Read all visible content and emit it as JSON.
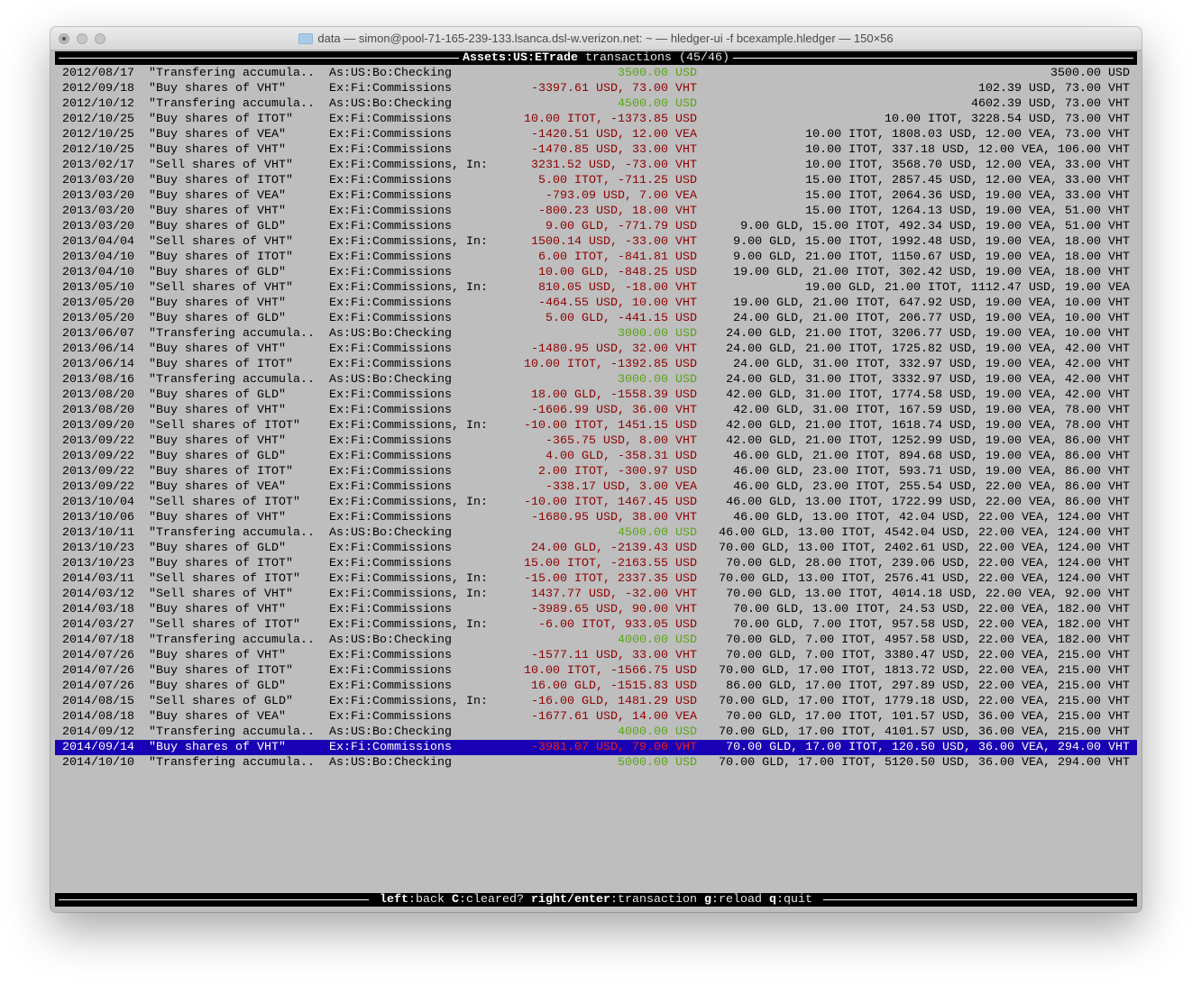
{
  "window": {
    "title": "data — simon@pool-71-165-239-133.lsanca.dsl-w.verizon.net: ~ — hledger-ui -f bcexample.hledger — 150×56"
  },
  "header": {
    "account": "Assets:US:ETrade",
    "label": "transactions",
    "count": "(45/46)"
  },
  "footer": [
    {
      "key": "left",
      "action": "back"
    },
    {
      "key": "C",
      "action": "cleared?"
    },
    {
      "key": "right/enter",
      "action": "transaction"
    },
    {
      "key": "g",
      "action": "reload"
    },
    {
      "key": "q",
      "action": "quit"
    }
  ],
  "colors": {
    "negative": "#8e0000",
    "positive": "#5aa516",
    "selection": "#1a00b4",
    "background": "#bebebe"
  },
  "selected_index": 44,
  "rows": [
    [
      "2012/08/17",
      "\"Transfering accumula..",
      "As:US:Bo:Checking",
      "3500.00 USD",
      "3500.00 USD"
    ],
    [
      "2012/09/18",
      "\"Buy shares of VHT\"",
      "Ex:Fi:Commissions",
      "-3397.61 USD, 73.00 VHT",
      "102.39 USD, 73.00 VHT"
    ],
    [
      "2012/10/12",
      "\"Transfering accumula..",
      "As:US:Bo:Checking",
      "4500.00 USD",
      "4602.39 USD, 73.00 VHT"
    ],
    [
      "2012/10/25",
      "\"Buy shares of ITOT\"",
      "Ex:Fi:Commissions",
      "10.00 ITOT, -1373.85 USD",
      "10.00 ITOT, 3228.54 USD, 73.00 VHT"
    ],
    [
      "2012/10/25",
      "\"Buy shares of VEA\"",
      "Ex:Fi:Commissions",
      "-1420.51 USD, 12.00 VEA",
      "10.00 ITOT, 1808.03 USD, 12.00 VEA, 73.00 VHT"
    ],
    [
      "2012/10/25",
      "\"Buy shares of VHT\"",
      "Ex:Fi:Commissions",
      "-1470.85 USD, 33.00 VHT",
      "10.00 ITOT, 337.18 USD, 12.00 VEA, 106.00 VHT"
    ],
    [
      "2013/02/17",
      "\"Sell shares of VHT\"",
      "Ex:Fi:Commissions, In:..",
      "3231.52 USD, -73.00 VHT",
      "10.00 ITOT, 3568.70 USD, 12.00 VEA, 33.00 VHT"
    ],
    [
      "2013/03/20",
      "\"Buy shares of ITOT\"",
      "Ex:Fi:Commissions",
      "5.00 ITOT, -711.25 USD",
      "15.00 ITOT, 2857.45 USD, 12.00 VEA, 33.00 VHT"
    ],
    [
      "2013/03/20",
      "\"Buy shares of VEA\"",
      "Ex:Fi:Commissions",
      "-793.09 USD, 7.00 VEA",
      "15.00 ITOT, 2064.36 USD, 19.00 VEA, 33.00 VHT"
    ],
    [
      "2013/03/20",
      "\"Buy shares of VHT\"",
      "Ex:Fi:Commissions",
      "-800.23 USD, 18.00 VHT",
      "15.00 ITOT, 1264.13 USD, 19.00 VEA, 51.00 VHT"
    ],
    [
      "2013/03/20",
      "\"Buy shares of GLD\"",
      "Ex:Fi:Commissions",
      "9.00 GLD, -771.79 USD",
      "9.00 GLD, 15.00 ITOT, 492.34 USD, 19.00 VEA, 51.00 VHT"
    ],
    [
      "2013/04/04",
      "\"Sell shares of VHT\"",
      "Ex:Fi:Commissions, In:..",
      "1500.14 USD, -33.00 VHT",
      "9.00 GLD, 15.00 ITOT, 1992.48 USD, 19.00 VEA, 18.00 VHT"
    ],
    [
      "2013/04/10",
      "\"Buy shares of ITOT\"",
      "Ex:Fi:Commissions",
      "6.00 ITOT, -841.81 USD",
      "9.00 GLD, 21.00 ITOT, 1150.67 USD, 19.00 VEA, 18.00 VHT"
    ],
    [
      "2013/04/10",
      "\"Buy shares of GLD\"",
      "Ex:Fi:Commissions",
      "10.00 GLD, -848.25 USD",
      "19.00 GLD, 21.00 ITOT, 302.42 USD, 19.00 VEA, 18.00 VHT"
    ],
    [
      "2013/05/10",
      "\"Sell shares of VHT\"",
      "Ex:Fi:Commissions, In:..",
      "810.05 USD, -18.00 VHT",
      "19.00 GLD, 21.00 ITOT, 1112.47 USD, 19.00 VEA"
    ],
    [
      "2013/05/20",
      "\"Buy shares of VHT\"",
      "Ex:Fi:Commissions",
      "-464.55 USD, 10.00 VHT",
      "19.00 GLD, 21.00 ITOT, 647.92 USD, 19.00 VEA, 10.00 VHT"
    ],
    [
      "2013/05/20",
      "\"Buy shares of GLD\"",
      "Ex:Fi:Commissions",
      "5.00 GLD, -441.15 USD",
      "24.00 GLD, 21.00 ITOT, 206.77 USD, 19.00 VEA, 10.00 VHT"
    ],
    [
      "2013/06/07",
      "\"Transfering accumula..",
      "As:US:Bo:Checking",
      "3000.00 USD",
      "24.00 GLD, 21.00 ITOT, 3206.77 USD, 19.00 VEA, 10.00 VHT"
    ],
    [
      "2013/06/14",
      "\"Buy shares of VHT\"",
      "Ex:Fi:Commissions",
      "-1480.95 USD, 32.00 VHT",
      "24.00 GLD, 21.00 ITOT, 1725.82 USD, 19.00 VEA, 42.00 VHT"
    ],
    [
      "2013/06/14",
      "\"Buy shares of ITOT\"",
      "Ex:Fi:Commissions",
      "10.00 ITOT, -1392.85 USD",
      "24.00 GLD, 31.00 ITOT, 332.97 USD, 19.00 VEA, 42.00 VHT"
    ],
    [
      "2013/08/16",
      "\"Transfering accumula..",
      "As:US:Bo:Checking",
      "3000.00 USD",
      "24.00 GLD, 31.00 ITOT, 3332.97 USD, 19.00 VEA, 42.00 VHT"
    ],
    [
      "2013/08/20",
      "\"Buy shares of GLD\"",
      "Ex:Fi:Commissions",
      "18.00 GLD, -1558.39 USD",
      "42.00 GLD, 31.00 ITOT, 1774.58 USD, 19.00 VEA, 42.00 VHT"
    ],
    [
      "2013/08/20",
      "\"Buy shares of VHT\"",
      "Ex:Fi:Commissions",
      "-1606.99 USD, 36.00 VHT",
      "42.00 GLD, 31.00 ITOT, 167.59 USD, 19.00 VEA, 78.00 VHT"
    ],
    [
      "2013/09/20",
      "\"Sell shares of ITOT\"",
      "Ex:Fi:Commissions, In:..",
      "-10.00 ITOT, 1451.15 USD",
      "42.00 GLD, 21.00 ITOT, 1618.74 USD, 19.00 VEA, 78.00 VHT"
    ],
    [
      "2013/09/22",
      "\"Buy shares of VHT\"",
      "Ex:Fi:Commissions",
      "-365.75 USD, 8.00 VHT",
      "42.00 GLD, 21.00 ITOT, 1252.99 USD, 19.00 VEA, 86.00 VHT"
    ],
    [
      "2013/09/22",
      "\"Buy shares of GLD\"",
      "Ex:Fi:Commissions",
      "4.00 GLD, -358.31 USD",
      "46.00 GLD, 21.00 ITOT, 894.68 USD, 19.00 VEA, 86.00 VHT"
    ],
    [
      "2013/09/22",
      "\"Buy shares of ITOT\"",
      "Ex:Fi:Commissions",
      "2.00 ITOT, -300.97 USD",
      "46.00 GLD, 23.00 ITOT, 593.71 USD, 19.00 VEA, 86.00 VHT"
    ],
    [
      "2013/09/22",
      "\"Buy shares of VEA\"",
      "Ex:Fi:Commissions",
      "-338.17 USD, 3.00 VEA",
      "46.00 GLD, 23.00 ITOT, 255.54 USD, 22.00 VEA, 86.00 VHT"
    ],
    [
      "2013/10/04",
      "\"Sell shares of ITOT\"",
      "Ex:Fi:Commissions, In:..",
      "-10.00 ITOT, 1467.45 USD",
      "46.00 GLD, 13.00 ITOT, 1722.99 USD, 22.00 VEA, 86.00 VHT"
    ],
    [
      "2013/10/06",
      "\"Buy shares of VHT\"",
      "Ex:Fi:Commissions",
      "-1680.95 USD, 38.00 VHT",
      "46.00 GLD, 13.00 ITOT, 42.04 USD, 22.00 VEA, 124.00 VHT"
    ],
    [
      "2013/10/11",
      "\"Transfering accumula..",
      "As:US:Bo:Checking",
      "4500.00 USD",
      "46.00 GLD, 13.00 ITOT, 4542.04 USD, 22.00 VEA, 124.00 VHT"
    ],
    [
      "2013/10/23",
      "\"Buy shares of GLD\"",
      "Ex:Fi:Commissions",
      "24.00 GLD, -2139.43 USD",
      "70.00 GLD, 13.00 ITOT, 2402.61 USD, 22.00 VEA, 124.00 VHT"
    ],
    [
      "2013/10/23",
      "\"Buy shares of ITOT\"",
      "Ex:Fi:Commissions",
      "15.00 ITOT, -2163.55 USD",
      "70.00 GLD, 28.00 ITOT, 239.06 USD, 22.00 VEA, 124.00 VHT"
    ],
    [
      "2014/03/11",
      "\"Sell shares of ITOT\"",
      "Ex:Fi:Commissions, In:..",
      "-15.00 ITOT, 2337.35 USD",
      "70.00 GLD, 13.00 ITOT, 2576.41 USD, 22.00 VEA, 124.00 VHT"
    ],
    [
      "2014/03/12",
      "\"Sell shares of VHT\"",
      "Ex:Fi:Commissions, In:..",
      "1437.77 USD, -32.00 VHT",
      "70.00 GLD, 13.00 ITOT, 4014.18 USD, 22.00 VEA, 92.00 VHT"
    ],
    [
      "2014/03/18",
      "\"Buy shares of VHT\"",
      "Ex:Fi:Commissions",
      "-3989.65 USD, 90.00 VHT",
      "70.00 GLD, 13.00 ITOT, 24.53 USD, 22.00 VEA, 182.00 VHT"
    ],
    [
      "2014/03/27",
      "\"Sell shares of ITOT\"",
      "Ex:Fi:Commissions, In:..",
      "-6.00 ITOT, 933.05 USD",
      "70.00 GLD, 7.00 ITOT, 957.58 USD, 22.00 VEA, 182.00 VHT"
    ],
    [
      "2014/07/18",
      "\"Transfering accumula..",
      "As:US:Bo:Checking",
      "4000.00 USD",
      "70.00 GLD, 7.00 ITOT, 4957.58 USD, 22.00 VEA, 182.00 VHT"
    ],
    [
      "2014/07/26",
      "\"Buy shares of VHT\"",
      "Ex:Fi:Commissions",
      "-1577.11 USD, 33.00 VHT",
      "70.00 GLD, 7.00 ITOT, 3380.47 USD, 22.00 VEA, 215.00 VHT"
    ],
    [
      "2014/07/26",
      "\"Buy shares of ITOT\"",
      "Ex:Fi:Commissions",
      "10.00 ITOT, -1566.75 USD",
      "70.00 GLD, 17.00 ITOT, 1813.72 USD, 22.00 VEA, 215.00 VHT"
    ],
    [
      "2014/07/26",
      "\"Buy shares of GLD\"",
      "Ex:Fi:Commissions",
      "16.00 GLD, -1515.83 USD",
      "86.00 GLD, 17.00 ITOT, 297.89 USD, 22.00 VEA, 215.00 VHT"
    ],
    [
      "2014/08/15",
      "\"Sell shares of GLD\"",
      "Ex:Fi:Commissions, In:..",
      "-16.00 GLD, 1481.29 USD",
      "70.00 GLD, 17.00 ITOT, 1779.18 USD, 22.00 VEA, 215.00 VHT"
    ],
    [
      "2014/08/18",
      "\"Buy shares of VEA\"",
      "Ex:Fi:Commissions",
      "-1677.61 USD, 14.00 VEA",
      "70.00 GLD, 17.00 ITOT, 101.57 USD, 36.00 VEA, 215.00 VHT"
    ],
    [
      "2014/09/12",
      "\"Transfering accumula..",
      "As:US:Bo:Checking",
      "4000.00 USD",
      "70.00 GLD, 17.00 ITOT, 4101.57 USD, 36.00 VEA, 215.00 VHT"
    ],
    [
      "2014/09/14",
      "\"Buy shares of VHT\"",
      "Ex:Fi:Commissions",
      "-3981.07 USD, 79.00 VHT",
      "70.00 GLD, 17.00 ITOT, 120.50 USD, 36.00 VEA, 294.00 VHT"
    ],
    [
      "2014/10/10",
      "\"Transfering accumula..",
      "As:US:Bo:Checking",
      "5000.00 USD",
      "70.00 GLD, 17.00 ITOT, 5120.50 USD, 36.00 VEA, 294.00 VHT"
    ]
  ]
}
